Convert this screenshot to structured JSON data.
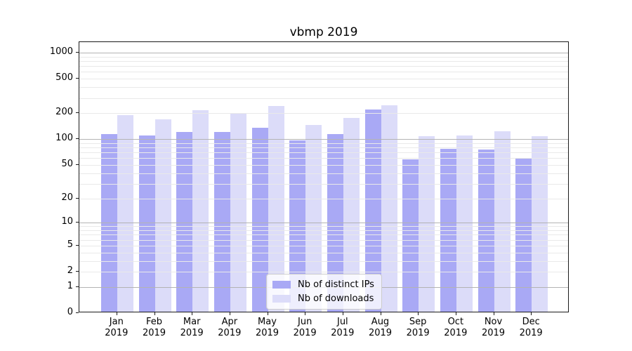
{
  "title": "vbmp 2019",
  "colors": {
    "distinct_ips_bar": "#a9a9f5",
    "downloads_bar": "#dcdcf9",
    "grid_major": "#b3b3b3",
    "grid_minor": "#e9e9e9",
    "axis": "#1a1a1a"
  },
  "legend": {
    "items": [
      {
        "label": "Nb of distinct IPs",
        "color": "#a9a9f5"
      },
      {
        "label": "Nb of downloads",
        "color": "#dcdcf9"
      }
    ]
  },
  "chart_data": {
    "type": "bar",
    "title": "vbmp 2019",
    "categories": [
      "Jan 2019",
      "Feb 2019",
      "Mar 2019",
      "Apr 2019",
      "May 2019",
      "Jun 2019",
      "Jul 2019",
      "Aug 2019",
      "Sep 2019",
      "Oct 2019",
      "Nov 2019",
      "Dec 2019"
    ],
    "series": [
      {
        "name": "Nb of distinct IPs",
        "color": "#a9a9f5",
        "values": [
          114,
          111,
          120,
          121,
          135,
          96,
          114,
          220,
          58,
          77,
          75,
          59
        ]
      },
      {
        "name": "Nb of downloads",
        "color": "#dcdcf9",
        "values": [
          190,
          170,
          216,
          197,
          242,
          145,
          177,
          246,
          108,
          111,
          123,
          109
        ]
      }
    ],
    "xlabel": "",
    "ylabel": "",
    "yscale": "log1p",
    "yticks": [
      0,
      1,
      2,
      5,
      10,
      20,
      50,
      100,
      200,
      500,
      1000
    ],
    "ylim": [
      0,
      1360
    ],
    "grid": true,
    "legend_position": "lower center"
  }
}
